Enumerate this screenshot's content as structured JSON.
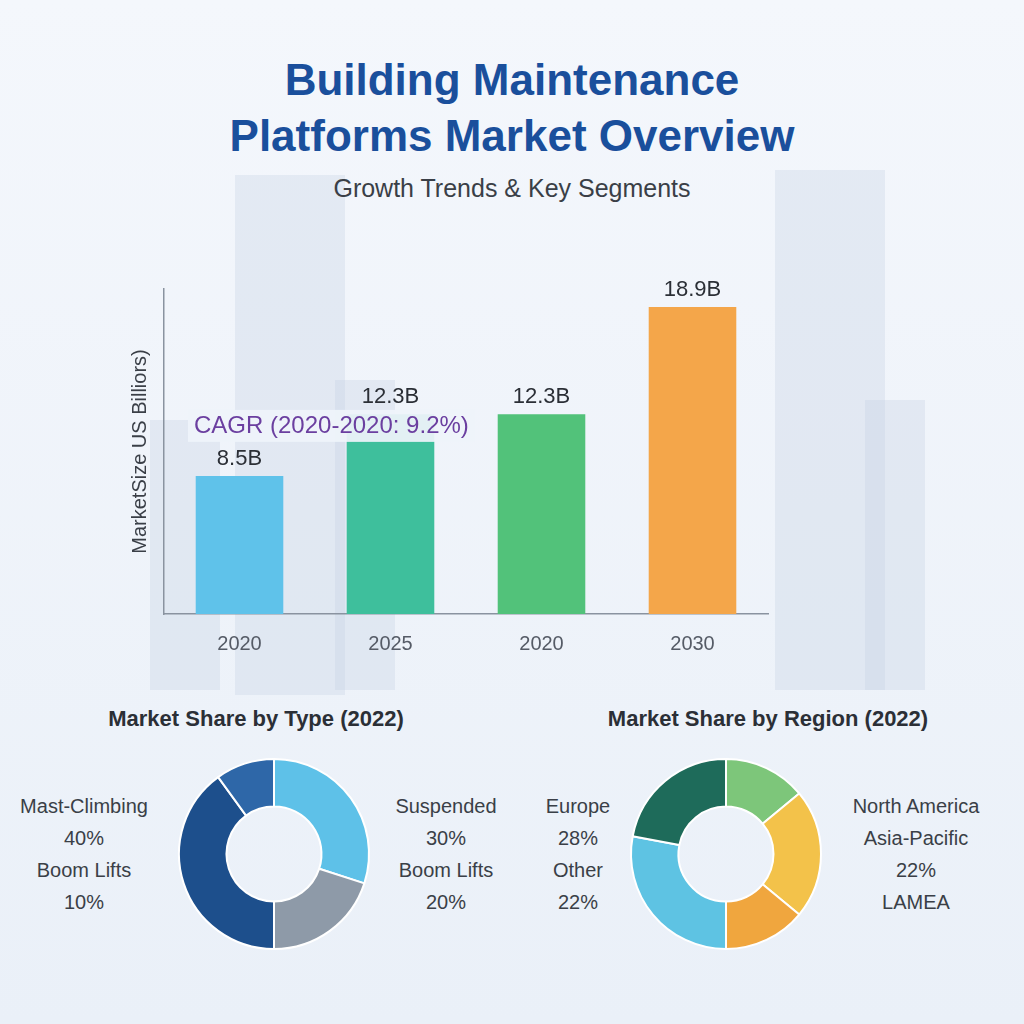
{
  "title": "Building Maintenance Platforms Market Overview",
  "subtitle": "Growth Trends & Key Segments",
  "chart_data": [
    {
      "type": "bar",
      "y_label": "MarketSize US Billiors)",
      "annotation": "CAGR (2020-2020: 9.2%)",
      "categories": [
        "2020",
        "2025",
        "2020",
        "2030"
      ],
      "values": [
        8.5,
        12.3,
        12.3,
        18.9
      ],
      "value_labels": [
        "8.5B",
        "12.3B",
        "12.3B",
        "18.9B"
      ],
      "data_labels": true,
      "colors": [
        "#5fc2ea",
        "#3ebf9c",
        "#52c27a",
        "#f4a64a"
      ],
      "ylim": [
        0,
        20
      ],
      "grid": false,
      "tick_labels": "x"
    },
    {
      "type": "doughnut",
      "title": "Market Share by Type (2022)",
      "categories": [
        "Suspended",
        "Boom Lifts",
        "Mast-Climbing",
        "Boom Lifts"
      ],
      "values": [
        30,
        20,
        40,
        10
      ],
      "value_labels": [
        "30%",
        "20%",
        "40%",
        "10%"
      ],
      "colors": [
        "#5ec1e8",
        "#8e9aa8",
        "#1d4f8c",
        "#2e67a8"
      ]
    },
    {
      "type": "doughnut",
      "title": "Market Share by Region (2022)",
      "categories": [
        "North America",
        "Asia-Pacific",
        "LAMEA",
        "Europe",
        "Other"
      ],
      "values": [
        14,
        22,
        14,
        28,
        22
      ],
      "value_labels": [
        null,
        "22%",
        null,
        "28%",
        "22%"
      ],
      "colors": [
        "#7dc67a",
        "#f3c24a",
        "#f0a63e",
        "#5ec3e3",
        "#1e6b5a"
      ]
    }
  ]
}
